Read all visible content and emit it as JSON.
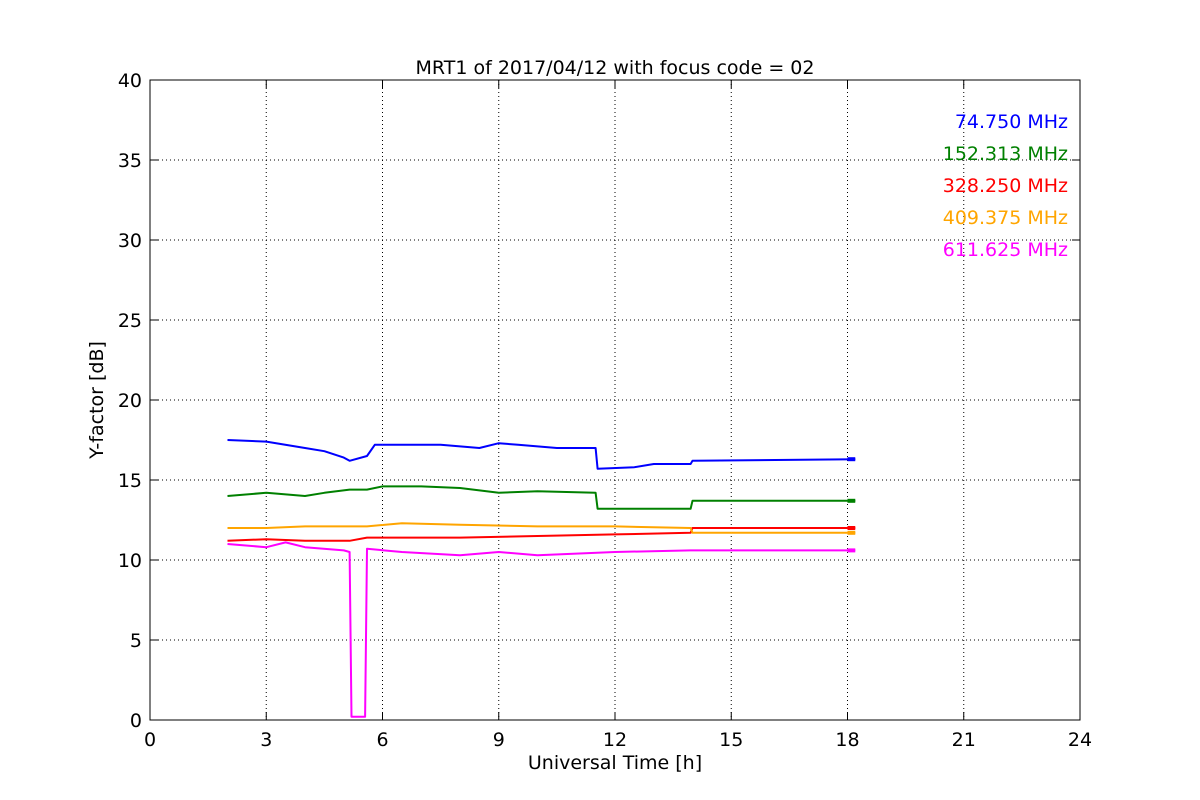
{
  "chart_data": {
    "type": "line",
    "title": "MRT1 of 2017/04/12 with focus code = 02",
    "xlabel": "Universal Time [h]",
    "ylabel": "Y-factor [dB]",
    "xlim": [
      0,
      24
    ],
    "ylim": [
      0,
      40
    ],
    "xticks": [
      0,
      3,
      6,
      9,
      12,
      15,
      18,
      21,
      24
    ],
    "yticks": [
      0,
      5,
      10,
      15,
      20,
      25,
      30,
      35,
      40
    ],
    "grid": true,
    "legend_position": "top-right",
    "series": [
      {
        "name": "74.750 MHz",
        "color": "#0000ff",
        "points": [
          [
            2.0,
            17.5
          ],
          [
            3.0,
            17.4
          ],
          [
            4.0,
            17.0
          ],
          [
            4.5,
            16.8
          ],
          [
            5.0,
            16.4
          ],
          [
            5.15,
            16.2
          ],
          [
            5.6,
            16.5
          ],
          [
            5.8,
            17.2
          ],
          [
            6.5,
            17.2
          ],
          [
            7.5,
            17.2
          ],
          [
            8.5,
            17.0
          ],
          [
            9.0,
            17.3
          ],
          [
            9.5,
            17.2
          ],
          [
            10.5,
            17.0
          ],
          [
            11.5,
            17.0
          ],
          [
            11.55,
            15.7
          ],
          [
            12.5,
            15.8
          ],
          [
            13.0,
            16.0
          ],
          [
            13.95,
            16.0
          ],
          [
            14.0,
            16.2
          ],
          [
            18.2,
            16.3
          ]
        ]
      },
      {
        "name": "152.313 MHz",
        "color": "#008000",
        "points": [
          [
            2.0,
            14.0
          ],
          [
            3.0,
            14.2
          ],
          [
            4.0,
            14.0
          ],
          [
            4.5,
            14.2
          ],
          [
            5.15,
            14.4
          ],
          [
            5.6,
            14.4
          ],
          [
            6.0,
            14.6
          ],
          [
            7.0,
            14.6
          ],
          [
            8.0,
            14.5
          ],
          [
            9.0,
            14.2
          ],
          [
            10.0,
            14.3
          ],
          [
            11.5,
            14.2
          ],
          [
            11.55,
            13.2
          ],
          [
            12.5,
            13.2
          ],
          [
            13.95,
            13.2
          ],
          [
            14.0,
            13.7
          ],
          [
            18.2,
            13.7
          ]
        ]
      },
      {
        "name": "328.250 MHz",
        "color": "#ff0000",
        "points": [
          [
            2.0,
            11.2
          ],
          [
            3.0,
            11.3
          ],
          [
            4.0,
            11.2
          ],
          [
            5.15,
            11.2
          ],
          [
            5.6,
            11.4
          ],
          [
            6.5,
            11.4
          ],
          [
            8.0,
            11.4
          ],
          [
            10.0,
            11.5
          ],
          [
            12.0,
            11.6
          ],
          [
            13.95,
            11.7
          ],
          [
            14.0,
            12.0
          ],
          [
            18.2,
            12.0
          ]
        ]
      },
      {
        "name": "409.375 MHz",
        "color": "#ffa500",
        "points": [
          [
            2.0,
            12.0
          ],
          [
            3.0,
            12.0
          ],
          [
            4.0,
            12.1
          ],
          [
            5.15,
            12.1
          ],
          [
            5.6,
            12.1
          ],
          [
            6.5,
            12.3
          ],
          [
            8.0,
            12.2
          ],
          [
            10.0,
            12.1
          ],
          [
            12.0,
            12.1
          ],
          [
            13.95,
            12.0
          ],
          [
            14.0,
            11.7
          ],
          [
            18.2,
            11.7
          ]
        ]
      },
      {
        "name": "611.625 MHz",
        "color": "#ff00ff",
        "points": [
          [
            2.0,
            11.0
          ],
          [
            3.0,
            10.8
          ],
          [
            3.5,
            11.1
          ],
          [
            4.0,
            10.8
          ],
          [
            5.0,
            10.6
          ],
          [
            5.15,
            10.5
          ],
          [
            5.2,
            0.2
          ],
          [
            5.55,
            0.2
          ],
          [
            5.6,
            10.7
          ],
          [
            6.5,
            10.5
          ],
          [
            8.0,
            10.3
          ],
          [
            9.0,
            10.5
          ],
          [
            10.0,
            10.3
          ],
          [
            11.0,
            10.4
          ],
          [
            12.0,
            10.5
          ],
          [
            13.95,
            10.6
          ],
          [
            14.0,
            10.6
          ],
          [
            18.2,
            10.6
          ]
        ]
      }
    ]
  }
}
